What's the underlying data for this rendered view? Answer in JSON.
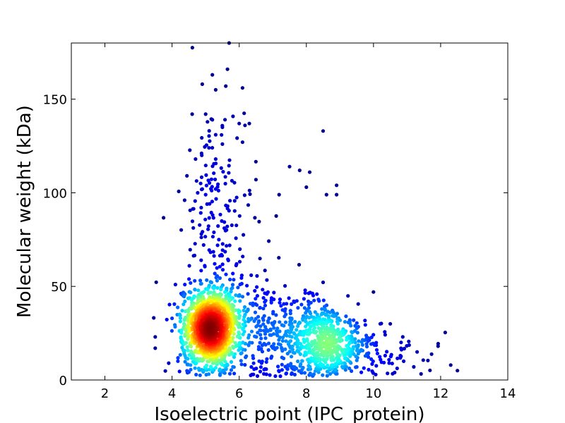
{
  "chart_data": {
    "type": "scatter",
    "title": "",
    "xlabel": "Isoelectric point (IPC_protein)",
    "ylabel": "Molecular weight (kDa)",
    "xlim": [
      1,
      14
    ],
    "ylim": [
      0,
      180
    ],
    "xticks": [
      2,
      4,
      6,
      8,
      10,
      12,
      14
    ],
    "yticks": [
      0,
      50,
      100,
      150
    ],
    "grid": false,
    "legend": "none",
    "colormap": "jet (point density)",
    "colors": {
      "low_density": "#00008b",
      "mid_density": "#00ffff",
      "high_density": "#8b0000"
    },
    "clusters": [
      {
        "center_x": 5.15,
        "center_y": 28,
        "spread_x": 0.42,
        "spread_y": 11,
        "count": 1300
      },
      {
        "center_x": 8.6,
        "center_y": 20,
        "spread_x": 0.5,
        "spread_y": 9,
        "count": 480
      },
      {
        "center_x": 7.1,
        "center_y": 25,
        "spread_x": 0.9,
        "spread_y": 14,
        "count": 380
      },
      {
        "center_x": 5.4,
        "center_y": 80,
        "spread_x": 0.55,
        "spread_y": 30,
        "count": 190
      },
      {
        "center_x": 9.8,
        "center_y": 14,
        "spread_x": 0.9,
        "spread_y": 7,
        "count": 100
      }
    ],
    "outliers": [
      [
        5.7,
        180
      ],
      [
        5.65,
        166
      ],
      [
        5.2,
        163
      ],
      [
        4.9,
        158
      ],
      [
        5.6,
        157
      ],
      [
        6.1,
        156
      ],
      [
        5.3,
        155
      ],
      [
        5.0,
        142
      ],
      [
        4.6,
        142
      ],
      [
        5.2,
        139
      ],
      [
        6.3,
        137
      ],
      [
        6.0,
        137
      ],
      [
        5.5,
        135
      ],
      [
        8.5,
        133
      ],
      [
        5.3,
        131
      ],
      [
        6.1,
        127
      ],
      [
        5.5,
        126
      ],
      [
        5.1,
        124
      ],
      [
        4.7,
        118
      ],
      [
        5.3,
        118
      ],
      [
        7.5,
        114
      ],
      [
        7.8,
        112
      ],
      [
        8.1,
        111
      ],
      [
        8.9,
        104
      ],
      [
        8.0,
        103
      ],
      [
        4.9,
        102
      ],
      [
        5.3,
        102
      ],
      [
        8.6,
        99
      ],
      [
        8.9,
        99
      ],
      [
        12.3,
        8
      ],
      [
        12.5,
        5
      ],
      [
        11.3,
        15
      ],
      [
        11.2,
        7
      ],
      [
        10.9,
        10
      ],
      [
        10.8,
        13
      ],
      [
        3.5,
        23
      ],
      [
        3.5,
        17
      ],
      [
        3.9,
        9
      ],
      [
        4.1,
        51
      ],
      [
        10.2,
        30
      ],
      [
        10.5,
        30
      ],
      [
        10.0,
        47
      ]
    ]
  }
}
